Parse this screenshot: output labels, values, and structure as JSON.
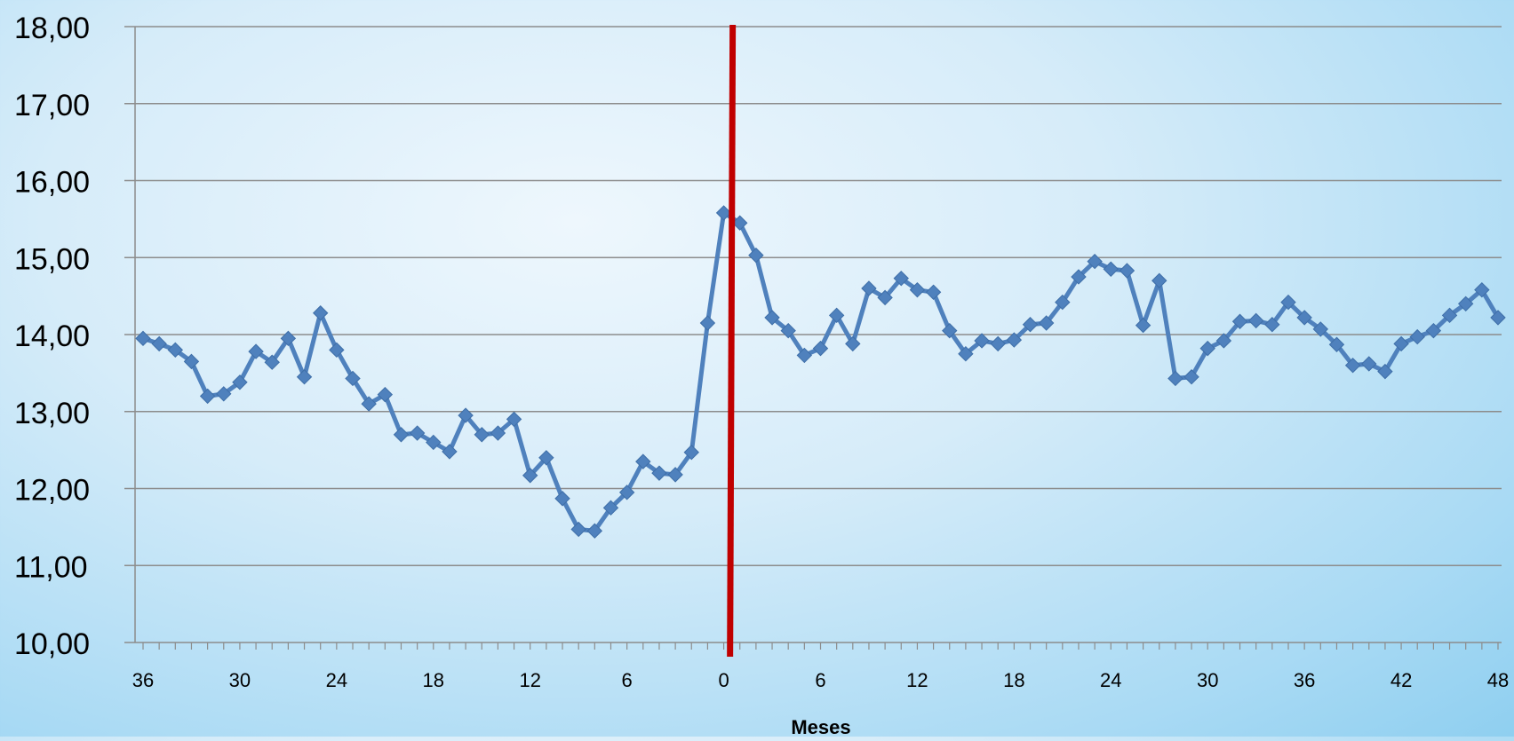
{
  "chart_data": {
    "type": "line",
    "xlabel": "Meses",
    "ylabel": "",
    "title": "",
    "ylim": [
      10,
      18
    ],
    "yticks": [
      "10,00",
      "11,00",
      "12,00",
      "13,00",
      "14,00",
      "15,00",
      "16,00",
      "17,00",
      "18,00"
    ],
    "xticks": [
      "36",
      "30",
      "24",
      "18",
      "12",
      "6",
      "0",
      "6",
      "12",
      "18",
      "24",
      "30",
      "36",
      "42",
      "48"
    ],
    "xlim": [
      -36,
      48
    ],
    "grid": true,
    "marker_line_x": 0.5,
    "line_color": "#4f81bd",
    "marker_line_color": "#c00000",
    "series": [
      {
        "x": [
          -36,
          -35,
          -34,
          -33,
          -32,
          -31,
          -30,
          -29,
          -28,
          -27,
          -26,
          -25,
          -24,
          -23,
          -22,
          -21,
          -20,
          -19,
          -18,
          -17,
          -16,
          -15,
          -14,
          -13,
          -12,
          -11,
          -10,
          -9,
          -8,
          -7,
          -6,
          -5,
          -4,
          -3,
          -2,
          -1,
          0,
          1,
          2,
          3,
          4,
          5,
          6,
          7,
          8,
          9,
          10,
          11,
          12,
          13,
          14,
          15,
          16,
          17,
          18,
          19,
          20,
          21,
          22,
          23,
          24,
          25,
          26,
          27,
          28,
          29,
          30,
          31,
          32,
          33,
          34,
          35,
          36,
          37,
          38,
          39,
          40,
          41,
          42,
          43,
          44,
          45,
          46,
          47,
          48
        ],
        "values": [
          13.95,
          13.88,
          13.8,
          13.65,
          13.2,
          13.23,
          13.38,
          13.78,
          13.64,
          13.95,
          13.45,
          14.28,
          13.8,
          13.43,
          13.1,
          13.22,
          12.7,
          12.72,
          12.6,
          12.48,
          12.95,
          12.7,
          12.72,
          12.9,
          12.17,
          12.4,
          11.87,
          11.47,
          11.45,
          11.75,
          11.95,
          12.35,
          12.2,
          12.18,
          12.47,
          14.15,
          15.58,
          15.45,
          15.03,
          14.22,
          14.05,
          13.73,
          13.82,
          14.25,
          13.88,
          14.6,
          14.48,
          14.73,
          14.58,
          14.55,
          14.05,
          13.75,
          13.92,
          13.88,
          13.93,
          14.13,
          14.15,
          14.42,
          14.75,
          14.95,
          14.85,
          14.83,
          14.12,
          14.7,
          13.43,
          13.45,
          13.82,
          13.92,
          14.17,
          14.18,
          14.13,
          14.42,
          14.22,
          14.07,
          13.87,
          13.6,
          13.62,
          13.52,
          13.88,
          13.97,
          14.05,
          14.25,
          14.4,
          14.58,
          14.22
        ]
      }
    ]
  }
}
